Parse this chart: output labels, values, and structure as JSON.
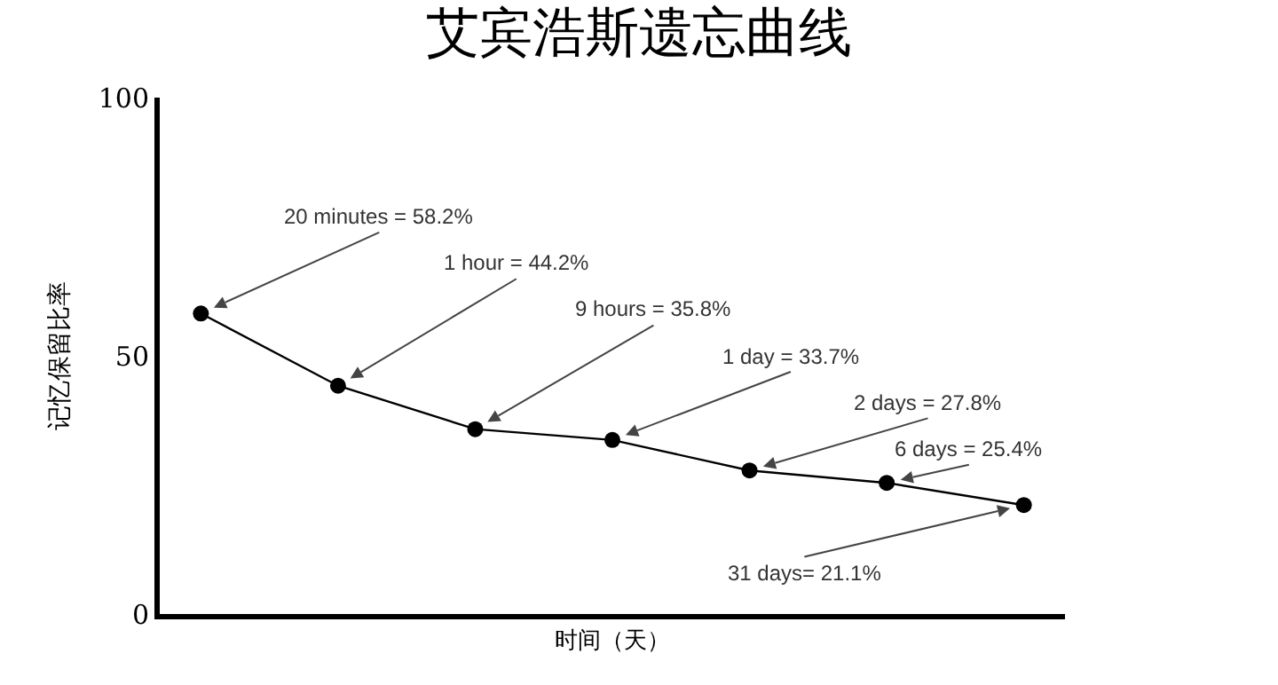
{
  "chart_data": {
    "type": "line",
    "title": "艾宾浩斯遗忘曲线",
    "xlabel": "时间（天）",
    "ylabel": "记忆保留比率",
    "categories": [
      null,
      null,
      null,
      null,
      null,
      null,
      null
    ],
    "series": [
      {
        "color": "#000000",
        "values": [
          58.2,
          44.2,
          35.8,
          33.7,
          27.8,
          25.4,
          21.1
        ]
      }
    ],
    "annotations": [
      "20 minutes = 58.2%",
      "1 hour = 44.2%",
      "9 hours = 35.8%",
      "1 day = 33.7%",
      "2 days = 27.8%",
      "6 days = 25.4%",
      "31 days= 21.1%"
    ],
    "ylim": [
      0,
      100
    ],
    "yticks": [
      0,
      50,
      100
    ],
    "grid": false,
    "marker": "circle",
    "line_style": "solid"
  }
}
